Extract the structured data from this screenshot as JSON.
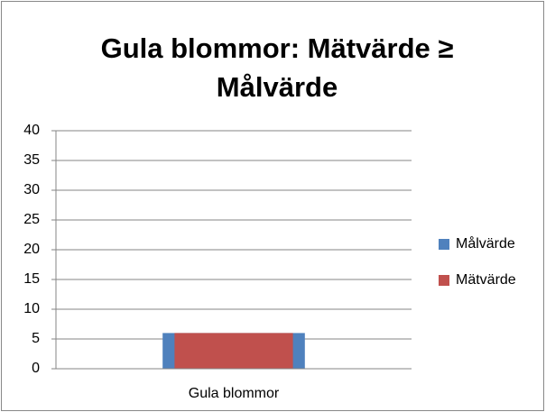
{
  "chart_data": {
    "type": "bar",
    "title": "Gula blommor: Mätvärde ≥ Målvärde",
    "categories": [
      "Gula blommor"
    ],
    "series": [
      {
        "name": "Målvärde",
        "color": "#4f81bd",
        "values": [
          6
        ]
      },
      {
        "name": "Mätvärde",
        "color": "#c0504d",
        "values": [
          6
        ]
      }
    ],
    "ylim": [
      0,
      40
    ],
    "yticks": [
      0,
      5,
      10,
      15,
      20,
      25,
      30,
      35,
      40
    ],
    "grid": true,
    "legend": "right"
  }
}
